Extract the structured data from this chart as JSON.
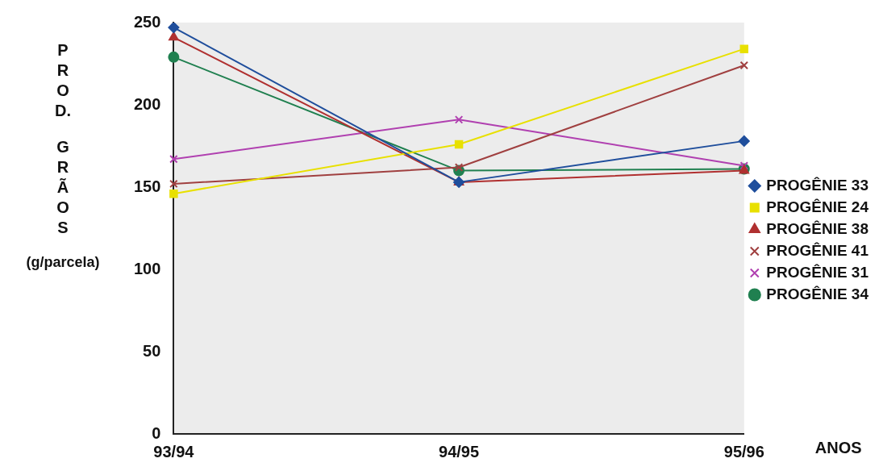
{
  "chart_data": {
    "type": "line",
    "xlabel": "ANOS",
    "ylabel": "PROD. GRÃOS (g/parcela)",
    "categories": [
      "93/94",
      "94/95",
      "95/96"
    ],
    "ylim": [
      0,
      250
    ],
    "yticks": [
      0,
      50,
      100,
      150,
      200,
      250
    ],
    "grid": false,
    "legend": "right",
    "line_style": "solid",
    "series": [
      {
        "name": "PROGÊNIE 33",
        "color": "#1f4e9c",
        "marker": "diamond",
        "values": [
          247,
          153,
          178
        ]
      },
      {
        "name": "PROGÊNIE 24",
        "color": "#e8e000",
        "marker": "square",
        "values": [
          146,
          176,
          234
        ]
      },
      {
        "name": "PROGÊNIE 38",
        "color": "#b03030",
        "marker": "triangle",
        "values": [
          241,
          153,
          160
        ]
      },
      {
        "name": "PROGÊNIE 41",
        "color": "#a04040",
        "marker": "cross",
        "values": [
          152,
          162,
          224
        ]
      },
      {
        "name": "PROGÊNIE 31",
        "color": "#b040b0",
        "marker": "cross",
        "values": [
          167,
          191,
          163
        ]
      },
      {
        "name": "PROGÊNIE 34",
        "color": "#208050",
        "marker": "circle",
        "values": [
          229,
          160,
          161
        ]
      }
    ]
  }
}
